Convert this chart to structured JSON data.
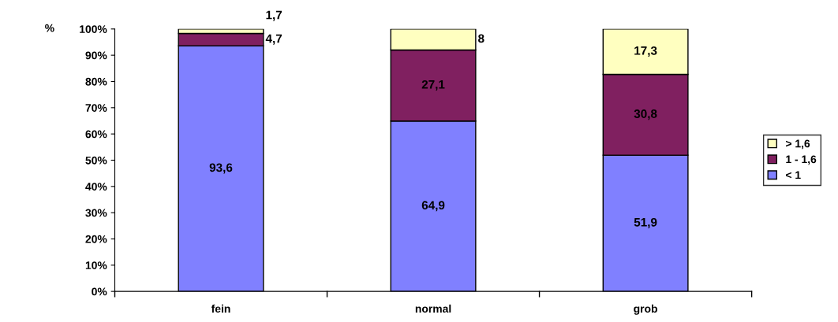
{
  "chart_data": {
    "type": "bar",
    "stacked": true,
    "ylabel": "%",
    "categories": [
      "fein",
      "normal",
      "grob"
    ],
    "series": [
      {
        "name": "< 1",
        "color": "#8080ff",
        "values": [
          93.6,
          64.9,
          51.9
        ],
        "value_labels": [
          "93,6",
          "64,9",
          "51,9"
        ]
      },
      {
        "name": "1 - 1,6",
        "color": "#802060",
        "values": [
          4.7,
          27.1,
          30.8
        ],
        "value_labels": [
          "4,7",
          "27,1",
          "30,8"
        ]
      },
      {
        "name": "> 1,6",
        "color": "#ffffc0",
        "values": [
          1.7,
          8,
          17.3
        ],
        "value_labels": [
          "1,7",
          "8",
          "17,3"
        ]
      }
    ],
    "ylim": [
      0,
      100
    ],
    "yticks": [
      {
        "value": 0,
        "label": "0%"
      },
      {
        "value": 10,
        "label": "10%"
      },
      {
        "value": 20,
        "label": "20%"
      },
      {
        "value": 30,
        "label": "30%"
      },
      {
        "value": 40,
        "label": "40%"
      },
      {
        "value": 50,
        "label": "50%"
      },
      {
        "value": 60,
        "label": "60%"
      },
      {
        "value": 70,
        "label": "70%"
      },
      {
        "value": 80,
        "label": "80%"
      },
      {
        "value": 90,
        "label": "90%"
      },
      {
        "value": 100,
        "label": "100%"
      }
    ],
    "grid": false,
    "legend": "right"
  }
}
